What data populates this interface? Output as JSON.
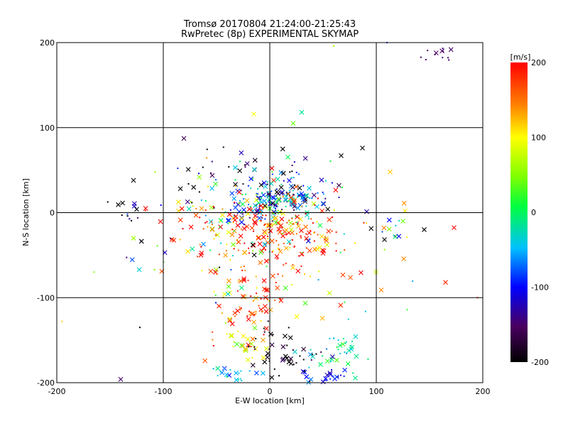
{
  "chart_data": {
    "type": "scatter",
    "title": "Tromsø 20170804 21:24:00-21:25:43",
    "subtitle": "RwPretec (8p) EXPERIMENTAL SKYMAP",
    "xlabel": "E-W location [km]",
    "ylabel": "N-S location [km]",
    "xlim": [
      -200,
      200
    ],
    "ylim": [
      -200,
      200
    ],
    "xticks": [
      "-200",
      "-100",
      "0",
      "100",
      "200"
    ],
    "yticks": [
      "-200",
      "-100",
      "0",
      "100",
      "200"
    ],
    "grid": true,
    "markers": [
      "x",
      "dot"
    ],
    "colorbar": {
      "label": "[m/s]",
      "range": [
        -200,
        200
      ],
      "ticks": [
        "200",
        "100",
        "0",
        "-100",
        "-200"
      ],
      "colormap": "rainbow (black→purple→blue→cyan→green→yellow→red)"
    },
    "clusters": [
      {
        "x": 5,
        "y": 12,
        "sx": 22,
        "sy": 10,
        "n": 150,
        "vel": -70,
        "vsd": 60
      },
      {
        "x": 10,
        "y": -25,
        "sx": 35,
        "sy": 20,
        "n": 180,
        "vel": 160,
        "vsd": 50
      },
      {
        "x": -25,
        "y": -5,
        "sx": 40,
        "sy": 28,
        "n": 110,
        "vel": 40,
        "vsd": 160
      },
      {
        "x": -5,
        "y": 35,
        "sx": 35,
        "sy": 20,
        "n": 80,
        "vel": -120,
        "vsd": 110
      },
      {
        "x": -20,
        "y": -110,
        "sx": 18,
        "sy": 25,
        "n": 70,
        "vel": 170,
        "vsd": 40
      },
      {
        "x": -30,
        "y": -155,
        "sx": 10,
        "sy": 10,
        "n": 25,
        "vel": 80,
        "vsd": 30
      },
      {
        "x": -35,
        "y": -190,
        "sx": 10,
        "sy": 8,
        "n": 25,
        "vel": -40,
        "vsd": 20
      },
      {
        "x": 65,
        "y": -165,
        "sx": 15,
        "sy": 15,
        "n": 40,
        "vel": -30,
        "vsd": 30
      },
      {
        "x": 55,
        "y": -192,
        "sx": 12,
        "sy": 5,
        "n": 20,
        "vel": -100,
        "vsd": 20
      },
      {
        "x": 10,
        "y": -170,
        "sx": 15,
        "sy": 20,
        "n": 45,
        "vel": -200,
        "vsd": 20
      },
      {
        "x": 160,
        "y": 185,
        "sx": 10,
        "sy": 5,
        "n": 12,
        "vel": -150,
        "vsd": 10
      },
      {
        "x": 0,
        "y": -60,
        "sx": 60,
        "sy": 40,
        "n": 80,
        "vel": 100,
        "vsd": 120
      },
      {
        "x": -130,
        "y": -20,
        "sx": 10,
        "sy": 25,
        "n": 15,
        "vel": -200,
        "vsd": 80
      },
      {
        "x": 120,
        "y": -20,
        "sx": 10,
        "sy": 10,
        "n": 12,
        "vel": -30,
        "vsd": 90
      }
    ],
    "points": [
      {
        "x": 30,
        "y": 118,
        "vel": -20,
        "m": "x"
      },
      {
        "x": 22,
        "y": 105,
        "vel": 40,
        "m": "x"
      },
      {
        "x": -15,
        "y": 116,
        "vel": 100,
        "m": "x"
      },
      {
        "x": -128,
        "y": 38,
        "vel": -200,
        "m": "x"
      },
      {
        "x": -125,
        "y": 4,
        "vel": -200,
        "m": "x"
      },
      {
        "x": 87,
        "y": 76,
        "vel": -200,
        "m": "x"
      },
      {
        "x": 113,
        "y": 48,
        "vel": 120,
        "m": "x"
      },
      {
        "x": 127,
        "y": 2,
        "vel": 110,
        "m": "x"
      },
      {
        "x": 125,
        "y": -10,
        "vel": 40,
        "m": "x"
      },
      {
        "x": 145,
        "y": -20,
        "vel": -200,
        "m": "x"
      },
      {
        "x": 165,
        "y": -82,
        "vel": 180,
        "m": "x"
      },
      {
        "x": -128,
        "y": -30,
        "vel": 60,
        "m": "x"
      },
      {
        "x": -165,
        "y": -70,
        "vel": 50,
        "m": "dot"
      },
      {
        "x": -122,
        "y": -135,
        "vel": -200,
        "m": "dot"
      },
      {
        "x": -140,
        "y": -196,
        "vel": -150,
        "m": "x"
      },
      {
        "x": -195,
        "y": -128,
        "vel": 120,
        "m": "dot"
      },
      {
        "x": 195,
        "y": -100,
        "vel": 180,
        "m": "dot"
      },
      {
        "x": 110,
        "y": 200,
        "vel": -80,
        "m": "dot"
      },
      {
        "x": 60,
        "y": 196,
        "vel": 60,
        "m": "dot"
      },
      {
        "x": 67,
        "y": 67,
        "vel": -200,
        "m": "x"
      }
    ]
  }
}
